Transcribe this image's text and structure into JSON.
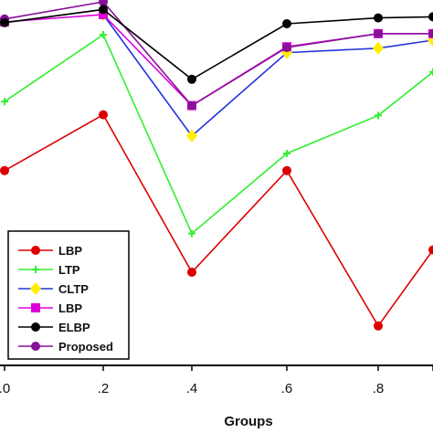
{
  "chart_data": {
    "type": "line",
    "title": "",
    "xlabel": "Groups",
    "ylabel": "",
    "x": [
      0.0,
      0.2,
      0.4,
      0.6,
      0.8,
      1.0
    ],
    "x_tick_labels": [
      ".0",
      ".2",
      ".4",
      ".6",
      ".8",
      ""
    ],
    "xlim": [
      -0.01,
      0.96
    ],
    "ylim": [
      0,
      100
    ],
    "grid": false,
    "legend_position": "bottom-left",
    "series": [
      {
        "name": "LBP",
        "color": "#dd0000",
        "marker": "circle",
        "values": [
          53.3,
          68.6,
          25.5,
          53.3,
          10.8,
          31.6
        ]
      },
      {
        "name": "LTP",
        "color": "#33ee33",
        "marker": "plus",
        "values": [
          72.2,
          90.5,
          36.1,
          58.0,
          68.4,
          80.3
        ]
      },
      {
        "name": "CLTP",
        "color": "#2233dd",
        "marker": "diamond-yellow",
        "values": [
          null,
          96.0,
          62.8,
          85.6,
          86.8,
          89.0
        ]
      },
      {
        "name": "LBP",
        "color": "#dd00dd",
        "marker": "square",
        "values": [
          94.0,
          96.0,
          71.1,
          87.2,
          90.8,
          90.8
        ]
      },
      {
        "name": "ELBP",
        "color": "#000000",
        "marker": "circle",
        "values": [
          93.8,
          97.4,
          78.3,
          93.5,
          95.1,
          95.4
        ]
      },
      {
        "name": "Proposed",
        "color": "#881199",
        "marker": "circle",
        "values": [
          94.8,
          99.5,
          71.1,
          87.0,
          90.8,
          90.8
        ]
      }
    ]
  }
}
